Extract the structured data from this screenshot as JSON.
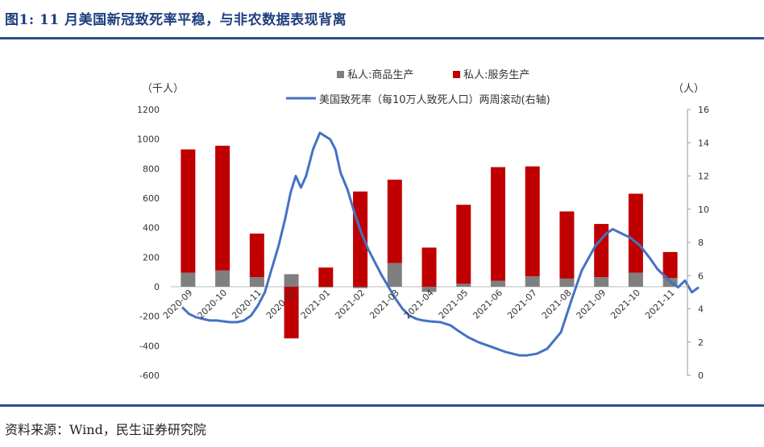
{
  "figure_title": "图1: 11 月美国新冠致死率平稳，与非农数据表现背离",
  "source": "资料来源：Wind，民生证券研究院",
  "colors": {
    "goods": "#7f7f7f",
    "services": "#c00000",
    "line": "#4472c4",
    "title": "#1f3f7f"
  },
  "chart_data": {
    "type": "bar",
    "title": "",
    "left_axis": {
      "unit": "（千人）",
      "ylim": [
        -600,
        1200
      ],
      "ticks": [
        1200,
        1000,
        800,
        600,
        400,
        200,
        0,
        -200,
        -400,
        -600
      ]
    },
    "right_axis": {
      "unit": "（人）",
      "ylim": [
        0,
        16
      ],
      "ticks": [
        16,
        14,
        12,
        10,
        8,
        6,
        4,
        2,
        0
      ]
    },
    "categories": [
      "2020-09",
      "2020-10",
      "2020-11",
      "2020-12",
      "2021-01",
      "2021-02",
      "2021-03",
      "2021-04",
      "2021-05",
      "2021-06",
      "2021-07",
      "2021-08",
      "2021-09",
      "2021-10",
      "2021-11"
    ],
    "series": [
      {
        "name": "私人:商品生产",
        "type": "bar",
        "values": [
          95,
          110,
          65,
          85,
          -5,
          -10,
          160,
          -35,
          20,
          40,
          70,
          55,
          65,
          95,
          60
        ]
      },
      {
        "name": "私人:服务生产",
        "type": "bar",
        "values": [
          835,
          845,
          295,
          -350,
          130,
          645,
          565,
          265,
          535,
          770,
          745,
          455,
          360,
          535,
          175
        ]
      },
      {
        "name": "美国致死率（每10万人致死人口）两周滚动(右轴)",
        "type": "line",
        "axis": "right",
        "x": [
          0,
          0.2,
          0.4,
          0.6,
          0.8,
          1.0,
          1.2,
          1.4,
          1.6,
          1.8,
          2.0,
          2.2,
          2.4,
          2.6,
          2.8,
          3.0,
          3.15,
          3.3,
          3.45,
          3.6,
          3.8,
          4.0,
          4.15,
          4.3,
          4.45,
          4.6,
          4.8,
          5.0,
          5.2,
          5.4,
          5.6,
          5.8,
          6.0,
          6.2,
          6.4,
          6.6,
          6.8,
          7.0,
          7.2,
          7.5,
          7.8,
          8.0,
          8.3,
          8.6,
          9.0,
          9.4,
          9.8,
          10.0,
          10.3,
          10.6,
          11.0,
          11.3,
          11.6,
          12.0,
          12.3,
          12.5,
          12.7,
          13.0,
          13.3,
          13.6,
          13.8,
          14.0,
          14.2,
          14.4,
          14.6,
          14.8,
          15.0
        ],
        "values": [
          4.1,
          3.7,
          3.5,
          3.4,
          3.3,
          3.3,
          3.25,
          3.2,
          3.2,
          3.3,
          3.6,
          4.2,
          5.0,
          6.4,
          7.8,
          9.5,
          11.0,
          12.0,
          11.3,
          12.0,
          13.6,
          14.6,
          14.4,
          14.2,
          13.6,
          12.2,
          11.2,
          9.8,
          8.6,
          7.6,
          6.8,
          6.0,
          5.3,
          4.6,
          4.0,
          3.6,
          3.4,
          3.3,
          3.25,
          3.2,
          3.0,
          2.7,
          2.3,
          2.0,
          1.7,
          1.4,
          1.2,
          1.2,
          1.3,
          1.6,
          2.6,
          4.5,
          6.3,
          7.8,
          8.5,
          8.8,
          8.6,
          8.3,
          7.8,
          7.0,
          6.4,
          6.0,
          5.6,
          5.3,
          5.7,
          5.0,
          5.3
        ]
      }
    ],
    "legend": "top"
  }
}
